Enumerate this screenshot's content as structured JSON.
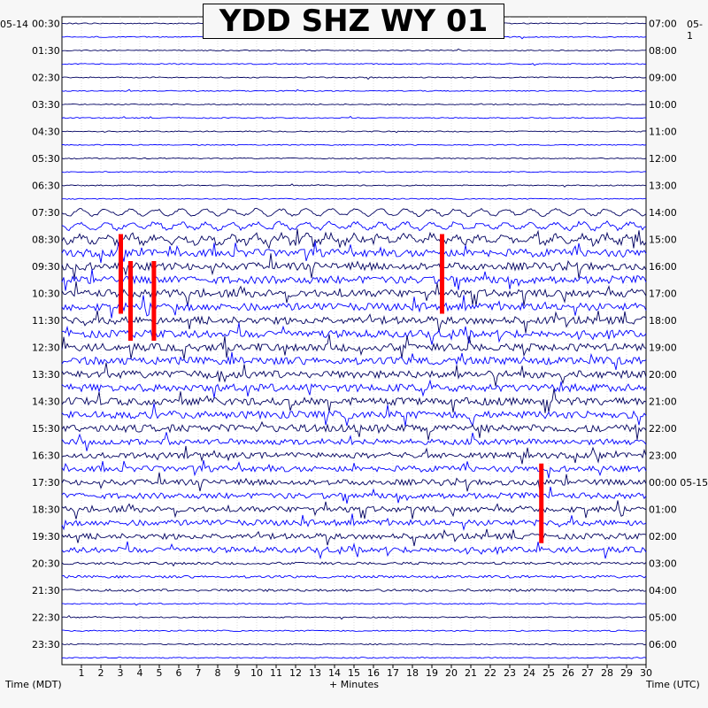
{
  "chart_data": {
    "type": "helicorder",
    "title": "YDD SHZ WY 01",
    "start_date_left": "05-14",
    "start_date_right": "05-1",
    "date_change_label": "05-15",
    "left_axis_label": "Time (MDT)",
    "right_axis_label": "Time (UTC)",
    "x_axis_label": "+ Minutes",
    "x_ticks": [
      1,
      2,
      3,
      4,
      5,
      6,
      7,
      8,
      9,
      10,
      11,
      12,
      13,
      14,
      15,
      16,
      17,
      18,
      19,
      20,
      21,
      22,
      23,
      24,
      25,
      26,
      27,
      28,
      29,
      30
    ],
    "left_hour_labels": [
      "00:30",
      "01:30",
      "02:30",
      "03:30",
      "04:30",
      "05:30",
      "06:30",
      "07:30",
      "08:30",
      "09:30",
      "10:30",
      "11:30",
      "12:30",
      "13:30",
      "14:30",
      "15:30",
      "16:30",
      "17:30",
      "18:30",
      "19:30",
      "20:30",
      "21:30",
      "22:30",
      "23:30"
    ],
    "right_hour_labels": [
      "07:00",
      "08:00",
      "09:00",
      "10:00",
      "11:00",
      "12:00",
      "13:00",
      "14:00",
      "15:00",
      "16:00",
      "17:00",
      "18:00",
      "19:00",
      "20:00",
      "21:00",
      "22:00",
      "23:00",
      "00:00 05-15",
      "01:00",
      "02:00",
      "03:00",
      "04:00",
      "05:00",
      "06:00"
    ],
    "trace_colors": [
      "#000060",
      "#0000ff"
    ],
    "clip_color": "#ff0000",
    "lines_per_hour": 2,
    "minutes_per_line": 30,
    "clipped_events": [
      {
        "row": 16,
        "minute": 3.0
      },
      {
        "row": 16,
        "minute": 19.5
      },
      {
        "row": 18,
        "minute": 3.5
      },
      {
        "row": 18,
        "minute": 4.7
      },
      {
        "row": 33,
        "minute": 24.6
      }
    ]
  }
}
